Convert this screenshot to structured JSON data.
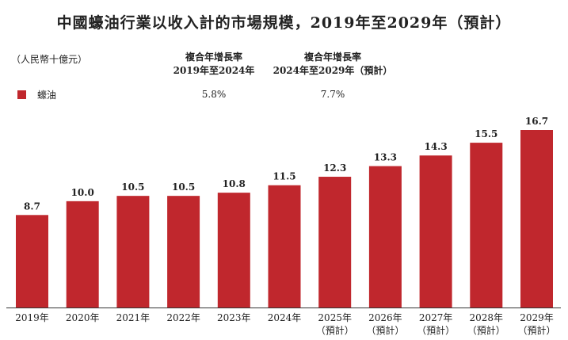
{
  "title": "中國蠔油行業以收入計的市場規模，2019年至2029年（預計）",
  "unit": "（人民幣十億元）",
  "legend_label": "蠔油",
  "cagr": [
    {
      "line1": "複合年增長率",
      "line2": "2019年至2024年",
      "value": "5.8%"
    },
    {
      "line1": "複合年增長率",
      "line2": "2024年至2029年（預計）",
      "value": "7.7%"
    }
  ],
  "colors": {
    "bar": "#c0272d",
    "axis": "#333333"
  },
  "chart_data": {
    "type": "bar",
    "title": "中國蠔油行業以收入計的市場規模，2019年至2029年（預計）",
    "ylabel": "（人民幣十億元）",
    "ylim": [
      0,
      16.7
    ],
    "categories": [
      "2019年",
      "2020年",
      "2021年",
      "2022年",
      "2023年",
      "2024年",
      "2025年",
      "2026年",
      "2027年",
      "2028年",
      "2029年"
    ],
    "category_sublabels": [
      "",
      "",
      "",
      "",
      "",
      "",
      "（預計）",
      "（預計）",
      "（預計）",
      "（預計）",
      "（預計）"
    ],
    "series": [
      {
        "name": "蠔油",
        "values": [
          8.7,
          10.0,
          10.5,
          10.5,
          10.8,
          11.5,
          12.3,
          13.3,
          14.3,
          15.5,
          16.7
        ]
      }
    ],
    "value_labels": [
      "8.7",
      "10.0",
      "10.5",
      "10.5",
      "10.8",
      "11.5",
      "12.3",
      "13.3",
      "14.3",
      "15.5",
      "16.7"
    ],
    "grid": false,
    "legend": "top-left"
  }
}
